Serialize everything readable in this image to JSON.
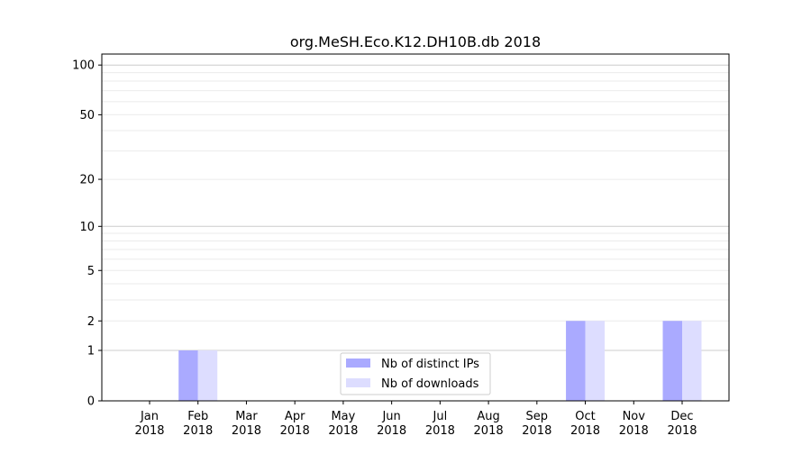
{
  "chart_data": {
    "type": "bar",
    "title": "org.MeSH.Eco.K12.DH10B.db 2018",
    "xlabel": "",
    "ylabel": "",
    "yscale": "log(1+y)",
    "ylim": [
      0,
      116
    ],
    "categories": [
      "Jan\n2018",
      "Feb\n2018",
      "Mar\n2018",
      "Apr\n2018",
      "May\n2018",
      "Jun\n2018",
      "Jul\n2018",
      "Aug\n2018",
      "Sep\n2018",
      "Oct\n2018",
      "Nov\n2018",
      "Dec\n2018"
    ],
    "yticks": [
      0,
      1,
      2,
      5,
      10,
      20,
      50,
      100
    ],
    "grid": true,
    "legend_position": "bottom-center",
    "series": [
      {
        "name": "Nb of distinct IPs",
        "color": "#aaaaff",
        "values": [
          0,
          1,
          0,
          0,
          0,
          0,
          0,
          0,
          0,
          2,
          0,
          2
        ]
      },
      {
        "name": "Nb of downloads",
        "color": "#ddddff",
        "values": [
          0,
          1,
          0,
          0,
          0,
          0,
          0,
          0,
          0,
          2,
          0,
          2
        ]
      }
    ]
  }
}
